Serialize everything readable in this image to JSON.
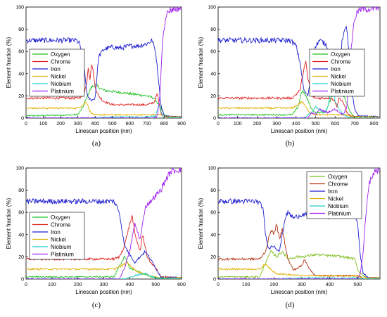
{
  "chart_data": [
    {
      "type": "line",
      "label": "(a)",
      "xlabel": "Linescan position (nm)",
      "ylabel": "Element fraction (%)",
      "xlim": [
        0,
        900
      ],
      "ylim": [
        0,
        100
      ],
      "xticks": [
        0,
        100,
        200,
        300,
        400,
        500,
        600,
        700,
        800,
        900
      ],
      "yticks": [
        0,
        20,
        40,
        60,
        80,
        100
      ],
      "legend_position": "middle-left",
      "series": [
        {
          "name": "Oxygen",
          "color": "#21c021",
          "x": [
            0,
            300,
            330,
            360,
            380,
            400,
            450,
            500,
            600,
            700,
            740,
            770,
            800,
            830,
            900
          ],
          "y": [
            2,
            3,
            10,
            22,
            28,
            30,
            25,
            24,
            22,
            20,
            18,
            12,
            3,
            1,
            1
          ]
        },
        {
          "name": "Chrome",
          "color": "#e02020",
          "x": [
            0,
            300,
            330,
            350,
            360,
            370,
            380,
            390,
            400,
            420,
            450,
            500,
            600,
            700,
            740,
            760,
            780,
            800,
            900
          ],
          "y": [
            18,
            18,
            20,
            30,
            46,
            35,
            50,
            40,
            28,
            20,
            15,
            12,
            12,
            12,
            14,
            22,
            5,
            1,
            1
          ]
        },
        {
          "name": "Iron",
          "color": "#1f1fd0",
          "x": [
            0,
            290,
            310,
            330,
            350,
            360,
            380,
            400,
            420,
            450,
            500,
            550,
            600,
            650,
            700,
            730,
            750,
            760,
            770,
            780,
            800,
            900
          ],
          "y": [
            70,
            70,
            67,
            55,
            25,
            18,
            16,
            18,
            55,
            62,
            64,
            63,
            65,
            65,
            67,
            70,
            60,
            45,
            30,
            12,
            2,
            1
          ]
        },
        {
          "name": "Nickel",
          "color": "#e0b000",
          "x": [
            0,
            300,
            330,
            350,
            370,
            390,
            420,
            500,
            600,
            700,
            750,
            780,
            800,
            900
          ],
          "y": [
            9,
            9,
            12,
            15,
            6,
            3,
            3,
            3,
            3,
            3,
            3,
            3,
            1,
            1
          ]
        },
        {
          "name": "Niobium",
          "color": "#20d0d0",
          "x": [
            0,
            350,
            400,
            500,
            600,
            700,
            750,
            770,
            790,
            800,
            900
          ],
          "y": [
            0,
            0,
            0.5,
            1,
            1,
            1,
            2,
            12,
            3,
            0,
            0
          ]
        },
        {
          "name": "Platinium",
          "color": "#a020f0",
          "x": [
            0,
            740,
            760,
            775,
            790,
            810,
            830,
            850,
            900
          ],
          "y": [
            0,
            0,
            2,
            20,
            70,
            93,
            97,
            98,
            99
          ]
        }
      ]
    },
    {
      "type": "line",
      "label": "(b)",
      "xlabel": "Linescan position (nm)",
      "ylabel": "Element fraction (%)",
      "xlim": [
        0,
        830
      ],
      "ylim": [
        0,
        100
      ],
      "xticks": [
        0,
        100,
        200,
        300,
        400,
        500,
        600,
        700,
        800
      ],
      "yticks": [
        0,
        20,
        40,
        60,
        80,
        100
      ],
      "legend_position": "middle-right",
      "series": [
        {
          "name": "Oxygen",
          "color": "#21c021",
          "x": [
            0,
            380,
            410,
            430,
            450,
            480,
            500,
            550,
            580,
            600,
            620,
            650,
            680,
            700,
            830
          ],
          "y": [
            3,
            3,
            10,
            25,
            20,
            8,
            5,
            5,
            18,
            28,
            25,
            18,
            5,
            1,
            1
          ]
        },
        {
          "name": "Chrome",
          "color": "#e02020",
          "x": [
            0,
            380,
            420,
            440,
            450,
            460,
            470,
            480,
            500,
            540,
            580,
            600,
            610,
            620,
            640,
            660,
            680,
            700,
            830
          ],
          "y": [
            18,
            18,
            25,
            45,
            50,
            35,
            30,
            20,
            18,
            18,
            18,
            15,
            10,
            18,
            15,
            5,
            2,
            1,
            1
          ]
        },
        {
          "name": "Iron",
          "color": "#1f1fd0",
          "x": [
            0,
            370,
            400,
            420,
            440,
            460,
            480,
            500,
            520,
            540,
            560,
            570,
            580,
            600,
            620,
            640,
            660,
            670,
            680,
            700,
            720,
            830
          ],
          "y": [
            70,
            70,
            65,
            50,
            25,
            20,
            40,
            65,
            70,
            68,
            65,
            40,
            25,
            20,
            45,
            75,
            82,
            60,
            30,
            8,
            2,
            1
          ]
        },
        {
          "name": "Nickel",
          "color": "#e0b000",
          "x": [
            0,
            380,
            410,
            430,
            450,
            470,
            500,
            550,
            600,
            650,
            700,
            830
          ],
          "y": [
            9,
            9,
            12,
            15,
            10,
            5,
            3,
            3,
            3,
            3,
            1,
            1
          ]
        },
        {
          "name": "Niobium",
          "color": "#20d0d0",
          "x": [
            0,
            440,
            480,
            500,
            540,
            560,
            590,
            600,
            620,
            650,
            700,
            830
          ],
          "y": [
            0,
            0,
            5,
            10,
            5,
            8,
            32,
            15,
            8,
            2,
            0,
            0
          ]
        },
        {
          "name": "Platinium",
          "color": "#a020f0",
          "x": [
            0,
            460,
            480,
            500,
            520,
            560,
            600,
            640,
            660,
            680,
            700,
            720,
            740,
            830
          ],
          "y": [
            0,
            0,
            5,
            3,
            8,
            5,
            8,
            3,
            10,
            60,
            90,
            97,
            98,
            99
          ]
        }
      ]
    },
    {
      "type": "line",
      "label": "(c)",
      "xlabel": "Linescan position (nm)",
      "ylabel": "Element fraction (%)",
      "xlim": [
        0,
        600
      ],
      "ylim": [
        0,
        100
      ],
      "xticks": [
        0,
        100,
        200,
        300,
        400,
        500,
        600
      ],
      "yticks": [
        0,
        20,
        40,
        60,
        80,
        100
      ],
      "legend_position": "middle-left",
      "series": [
        {
          "name": "Oxygen",
          "color": "#21c021",
          "x": [
            0,
            340,
            360,
            380,
            400,
            420,
            450,
            480,
            520,
            600
          ],
          "y": [
            2,
            2,
            12,
            20,
            10,
            8,
            5,
            2,
            1,
            1
          ]
        },
        {
          "name": "Chrome",
          "color": "#e02020",
          "x": [
            0,
            340,
            360,
            380,
            400,
            410,
            420,
            440,
            450,
            470,
            500,
            520,
            600
          ],
          "y": [
            18,
            18,
            20,
            30,
            50,
            57,
            40,
            25,
            40,
            18,
            10,
            2,
            1
          ]
        },
        {
          "name": "Iron",
          "color": "#1f1fd0",
          "x": [
            0,
            340,
            360,
            380,
            400,
            420,
            440,
            460,
            480,
            500,
            520,
            600
          ],
          "y": [
            70,
            70,
            60,
            30,
            22,
            15,
            20,
            25,
            18,
            10,
            2,
            1
          ]
        },
        {
          "name": "Nickel",
          "color": "#e0b000",
          "x": [
            0,
            340,
            370,
            390,
            420,
            450,
            480,
            520,
            600
          ],
          "y": [
            9,
            9,
            12,
            15,
            8,
            5,
            3,
            1,
            1
          ]
        },
        {
          "name": "Niobium",
          "color": "#20d0d0",
          "x": [
            0,
            380,
            420,
            460,
            500,
            600
          ],
          "y": [
            0,
            0,
            3,
            5,
            1,
            0
          ]
        },
        {
          "name": "Platinium",
          "color": "#a020f0",
          "x": [
            0,
            360,
            380,
            400,
            420,
            440,
            460,
            480,
            500,
            520,
            540,
            560,
            580,
            600
          ],
          "y": [
            0,
            0,
            10,
            25,
            50,
            35,
            65,
            70,
            75,
            80,
            90,
            97,
            98,
            99
          ]
        }
      ]
    },
    {
      "type": "line",
      "label": "(d)",
      "xlabel": "Linescan position (nm)",
      "ylabel": "Element fraction (%)",
      "xlim": [
        0,
        580
      ],
      "ylim": [
        0,
        100
      ],
      "xticks": [
        0,
        100,
        200,
        300,
        400,
        500
      ],
      "yticks": [
        0,
        20,
        40,
        60,
        80,
        100
      ],
      "legend_position": "top-center",
      "series": [
        {
          "name": "Oxygen",
          "color": "#7fbf1f",
          "x": [
            0,
            150,
            170,
            190,
            210,
            230,
            250,
            280,
            300,
            350,
            400,
            450,
            490,
            500,
            520,
            540,
            580
          ],
          "y": [
            2,
            2,
            15,
            25,
            20,
            25,
            18,
            20,
            20,
            22,
            21,
            20,
            18,
            8,
            3,
            1,
            1
          ]
        },
        {
          "name": "Chrome",
          "color": "#b03010",
          "x": [
            0,
            150,
            170,
            190,
            200,
            210,
            220,
            230,
            250,
            270,
            300,
            310,
            330,
            350,
            400,
            500,
            520,
            580
          ],
          "y": [
            18,
            18,
            25,
            45,
            40,
            50,
            35,
            45,
            18,
            8,
            12,
            18,
            8,
            3,
            3,
            3,
            1,
            1
          ]
        },
        {
          "name": "Iron",
          "color": "#1f1fd0",
          "x": [
            0,
            140,
            160,
            170,
            180,
            200,
            220,
            240,
            250,
            270,
            300,
            350,
            400,
            450,
            490,
            500,
            510,
            520,
            540,
            580
          ],
          "y": [
            70,
            70,
            65,
            40,
            28,
            30,
            25,
            55,
            60,
            55,
            58,
            58,
            56,
            57,
            58,
            50,
            20,
            5,
            1,
            1
          ]
        },
        {
          "name": "Nickel",
          "color": "#e0b000",
          "x": [
            0,
            150,
            170,
            190,
            210,
            250,
            300,
            400,
            500,
            520,
            580
          ],
          "y": [
            9,
            9,
            14,
            8,
            5,
            4,
            3,
            3,
            3,
            1,
            1
          ]
        },
        {
          "name": "Niobium",
          "color": "#20d0d0",
          "x": [
            0,
            200,
            300,
            400,
            500,
            520,
            580
          ],
          "y": [
            0,
            0,
            1,
            1,
            1,
            0,
            0
          ]
        },
        {
          "name": "Platinium",
          "color": "#a020f0",
          "x": [
            0,
            500,
            510,
            520,
            530,
            540,
            560,
            580
          ],
          "y": [
            0,
            0,
            5,
            25,
            60,
            85,
            97,
            99
          ]
        }
      ]
    }
  ]
}
